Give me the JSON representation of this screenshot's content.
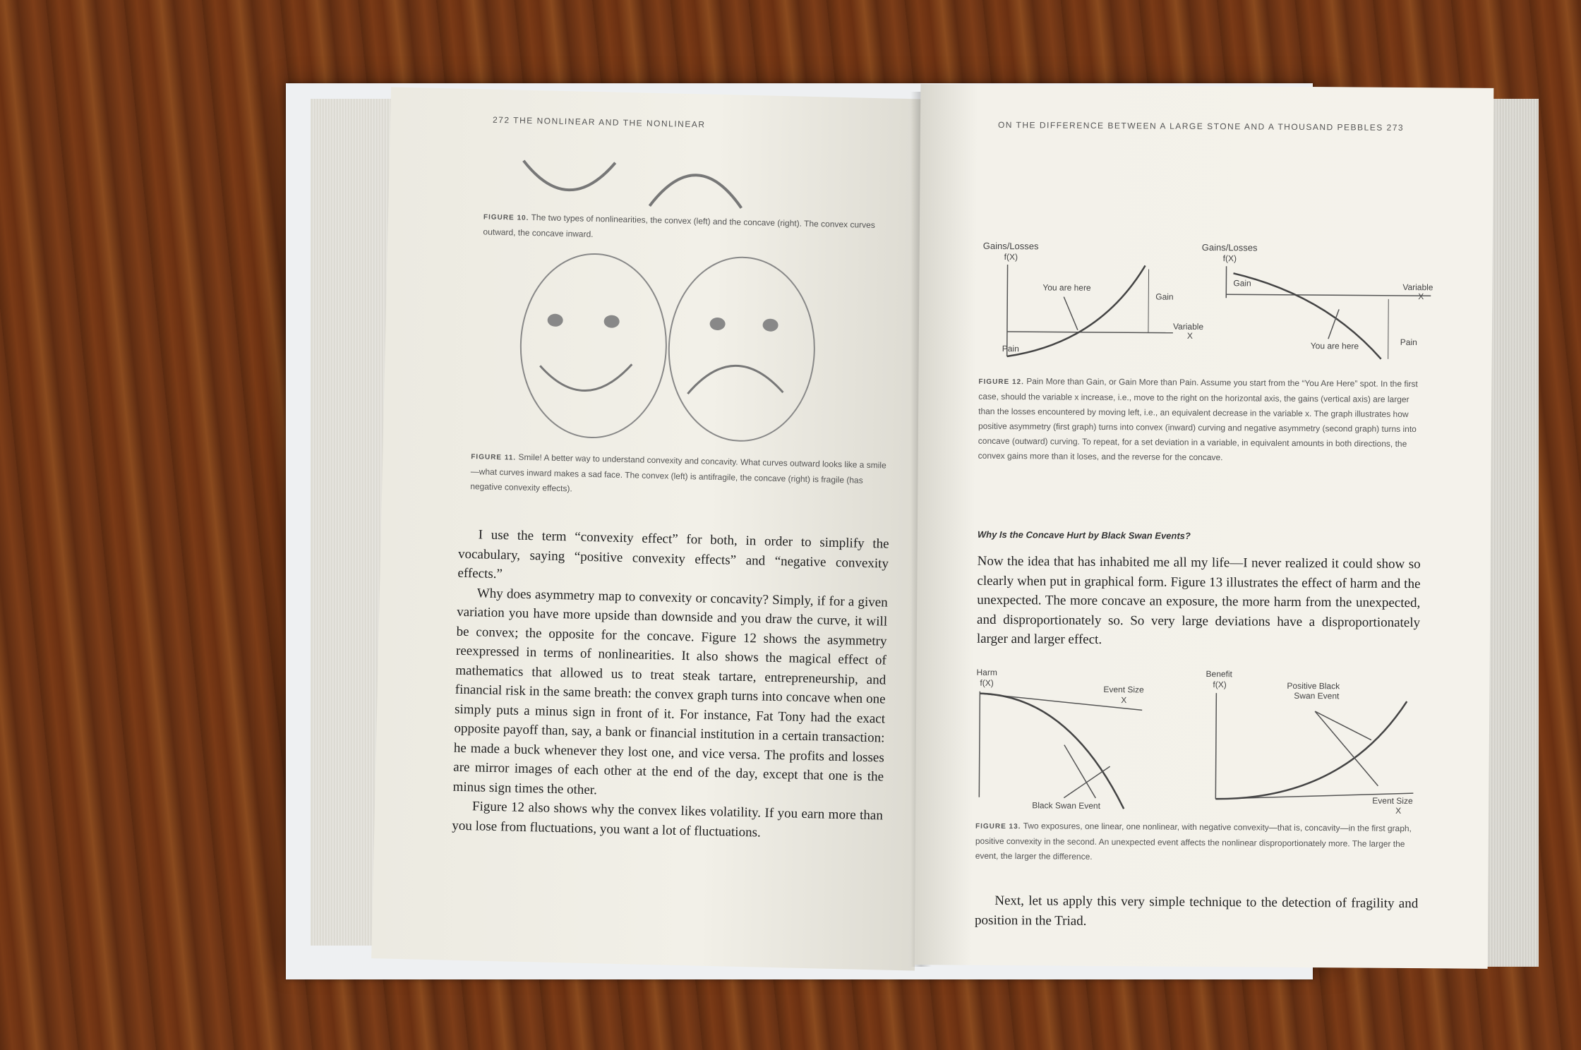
{
  "left_page": {
    "running_head": "272  THE NONLINEAR AND THE NONLINEAR",
    "figure10": {
      "label": "FIGURE 10.",
      "text": "The two types of nonlinearities, the convex (left) and the concave (right). The convex curves outward, the concave inward."
    },
    "figure11": {
      "label": "FIGURE 11.",
      "text": "Smile! A better way to understand convexity and concavity. What curves outward looks like a smile—what curves inward makes a sad face. The convex (left) is antifragile, the concave (right) is fragile (has negative convexity effects)."
    },
    "paragraphs": [
      "I use the term “convexity effect” for both, in order to simplify the vocabulary, saying “positive convexity effects” and “negative convexity effects.”",
      "Why does asymmetry map to convexity or concavity? Simply, if for a given variation you have more upside than downside and you draw the curve, it will be convex; the opposite for the concave. Figure 12 shows the asymmetry reexpressed in terms of nonlinearities. It also shows the magical effect of mathematics that allowed us to treat steak tartare, entrepreneurship, and financial risk in the same breath: the convex graph turns into concave when one simply puts a minus sign in front of it. For instance, Fat Tony had the exact opposite payoff than, say, a bank or financial institution in a certain transaction: he made a buck whenever they lost one, and vice versa. The profits and losses are mirror images of each other at the end of the day, except that one is the minus sign times the other.",
      "Figure 12 also shows why the convex likes volatility. If you earn more than you lose from fluctuations, you want a lot of fluctuations."
    ]
  },
  "right_page": {
    "running_head": "ON THE DIFFERENCE BETWEEN A LARGE STONE AND A THOUSAND PEBBLES   273",
    "figure12_graph": {
      "left": {
        "y_axis": "Gains/Losses",
        "y_sub": "f(X)",
        "here": "You are here",
        "gain": "Gain",
        "pain": "Pain",
        "x_axis": "Variable",
        "x_sub": "X"
      },
      "right": {
        "y_axis": "Gains/Losses",
        "y_sub": "f(X)",
        "here": "You are here",
        "gain": "Gain",
        "pain": "Pain",
        "x_axis": "Variable",
        "x_sub": "X"
      }
    },
    "figure12": {
      "label": "FIGURE 12.",
      "text": "Pain More than Gain, or Gain More than Pain. Assume you start from the “You Are Here” spot. In the first case, should the variable x increase, i.e., move to the right on the horizontal axis, the gains (vertical axis) are larger than the losses encountered by moving left, i.e., an equivalent decrease in the variable x. The graph illustrates how positive asymmetry (first graph) turns into convex (inward) curving and negative asymmetry (second graph) turns into concave (outward) curving. To repeat, for a set deviation in a variable, in equivalent amounts in both directions, the convex gains more than it loses, and the reverse for the concave."
    },
    "subhead": "Why Is the Concave Hurt by Black Swan Events?",
    "paragraph1": "Now the idea that has inhabited me all my life—I never realized it could show so clearly when put in graphical form. Figure 13 illustrates the effect of harm and the unexpected. The more concave an exposure, the more harm from the unexpected, and disproportionately so. So very large deviations have a disproportionately larger and larger effect.",
    "figure13_graph": {
      "left": {
        "y_axis": "Harm",
        "y_sub": "f(X)",
        "x_axis": "Event Size",
        "x_sub": "X",
        "event": "Black Swan Event"
      },
      "right": {
        "y_axis": "Benefit",
        "y_sub": "f(X)",
        "event": "Positive Black",
        "event2": "Swan Event",
        "x_axis": "Event Size",
        "x_sub": "X"
      }
    },
    "figure13": {
      "label": "FIGURE 13.",
      "text": "Two exposures, one linear, one nonlinear, with negative convexity—that is, concavity—in the first graph, positive convexity in the second. An unexpected event affects the nonlinear disproportionately more. The larger the event, the larger the difference."
    },
    "paragraph2": "Next, let us apply this very simple technique to the detection of fragility and position in the Triad."
  }
}
